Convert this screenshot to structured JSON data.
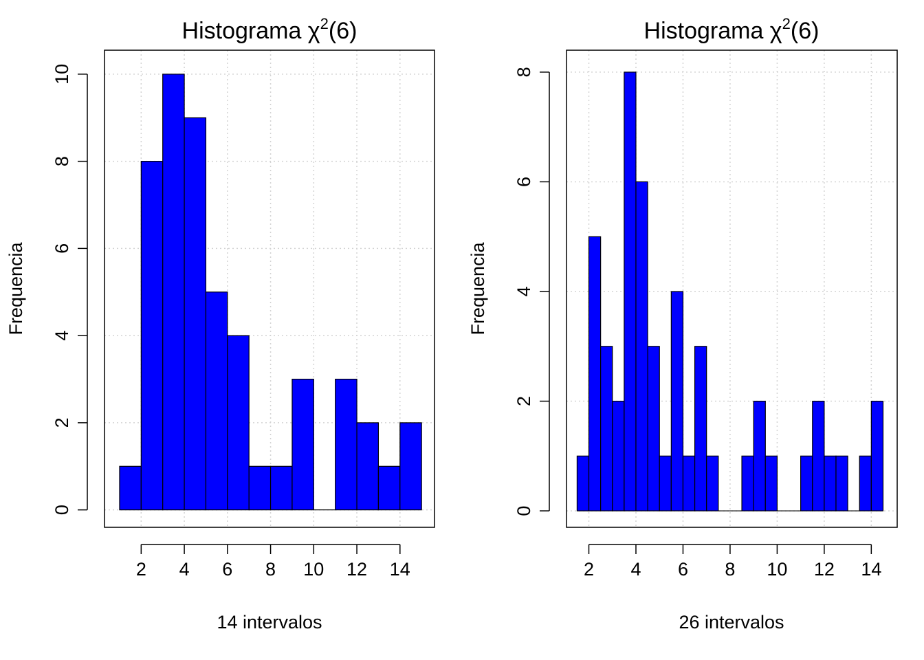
{
  "colors": {
    "bar_fill": "#0000ff",
    "bar_stroke": "#000000",
    "grid": "#d3d3d3"
  },
  "chart_data": [
    {
      "type": "bar",
      "title_main": "Histograma ",
      "title_symbol": "χ",
      "title_sup": "2",
      "title_end": "(6)",
      "xlabel": "14 intervalos",
      "ylabel": "Frequencia",
      "xlim": [
        0.3,
        15.6
      ],
      "ylim": [
        -0.4,
        10.55
      ],
      "x_ticks": [
        2,
        4,
        6,
        8,
        10,
        12,
        14
      ],
      "y_ticks": [
        0,
        2,
        4,
        6,
        8,
        10
      ],
      "grid": true,
      "bins": [
        {
          "x0": 1,
          "x1": 2,
          "count": 1
        },
        {
          "x0": 2,
          "x1": 3,
          "count": 8
        },
        {
          "x0": 3,
          "x1": 4,
          "count": 10
        },
        {
          "x0": 4,
          "x1": 5,
          "count": 9
        },
        {
          "x0": 5,
          "x1": 6,
          "count": 5
        },
        {
          "x0": 6,
          "x1": 7,
          "count": 4
        },
        {
          "x0": 7,
          "x1": 8,
          "count": 1
        },
        {
          "x0": 8,
          "x1": 9,
          "count": 1
        },
        {
          "x0": 9,
          "x1": 10,
          "count": 3
        },
        {
          "x0": 10,
          "x1": 11,
          "count": 0
        },
        {
          "x0": 11,
          "x1": 12,
          "count": 3
        },
        {
          "x0": 12,
          "x1": 13,
          "count": 2
        },
        {
          "x0": 13,
          "x1": 14,
          "count": 1
        },
        {
          "x0": 14,
          "x1": 15,
          "count": 2
        }
      ]
    },
    {
      "type": "bar",
      "title_main": "Histograma ",
      "title_symbol": "χ",
      "title_sup": "2",
      "title_end": "(6)",
      "xlabel": "26 intervalos",
      "ylabel": "Frequencia",
      "xlim": [
        1.05,
        15.1
      ],
      "ylim": [
        -0.3,
        8.4
      ],
      "x_ticks": [
        2,
        4,
        6,
        8,
        10,
        12,
        14
      ],
      "y_ticks": [
        0,
        2,
        4,
        6,
        8
      ],
      "grid": true,
      "bins": [
        {
          "x0": 1.5,
          "x1": 2.0,
          "count": 1
        },
        {
          "x0": 2.0,
          "x1": 2.5,
          "count": 5
        },
        {
          "x0": 2.5,
          "x1": 3.0,
          "count": 3
        },
        {
          "x0": 3.0,
          "x1": 3.5,
          "count": 2
        },
        {
          "x0": 3.5,
          "x1": 4.0,
          "count": 8
        },
        {
          "x0": 4.0,
          "x1": 4.5,
          "count": 6
        },
        {
          "x0": 4.5,
          "x1": 5.0,
          "count": 3
        },
        {
          "x0": 5.0,
          "x1": 5.5,
          "count": 1
        },
        {
          "x0": 5.5,
          "x1": 6.0,
          "count": 4
        },
        {
          "x0": 6.0,
          "x1": 6.5,
          "count": 1
        },
        {
          "x0": 6.5,
          "x1": 7.0,
          "count": 3
        },
        {
          "x0": 7.0,
          "x1": 7.5,
          "count": 1
        },
        {
          "x0": 7.5,
          "x1": 8.0,
          "count": 0
        },
        {
          "x0": 8.0,
          "x1": 8.5,
          "count": 0
        },
        {
          "x0": 8.5,
          "x1": 9.0,
          "count": 1
        },
        {
          "x0": 9.0,
          "x1": 9.5,
          "count": 2
        },
        {
          "x0": 9.5,
          "x1": 10.0,
          "count": 1
        },
        {
          "x0": 10.0,
          "x1": 10.5,
          "count": 0
        },
        {
          "x0": 10.5,
          "x1": 11.0,
          "count": 0
        },
        {
          "x0": 11.0,
          "x1": 11.5,
          "count": 1
        },
        {
          "x0": 11.5,
          "x1": 12.0,
          "count": 2
        },
        {
          "x0": 12.0,
          "x1": 12.5,
          "count": 1
        },
        {
          "x0": 12.5,
          "x1": 13.0,
          "count": 1
        },
        {
          "x0": 13.0,
          "x1": 13.5,
          "count": 0
        },
        {
          "x0": 13.5,
          "x1": 14.0,
          "count": 1
        },
        {
          "x0": 14.0,
          "x1": 14.5,
          "count": 2
        }
      ]
    }
  ]
}
